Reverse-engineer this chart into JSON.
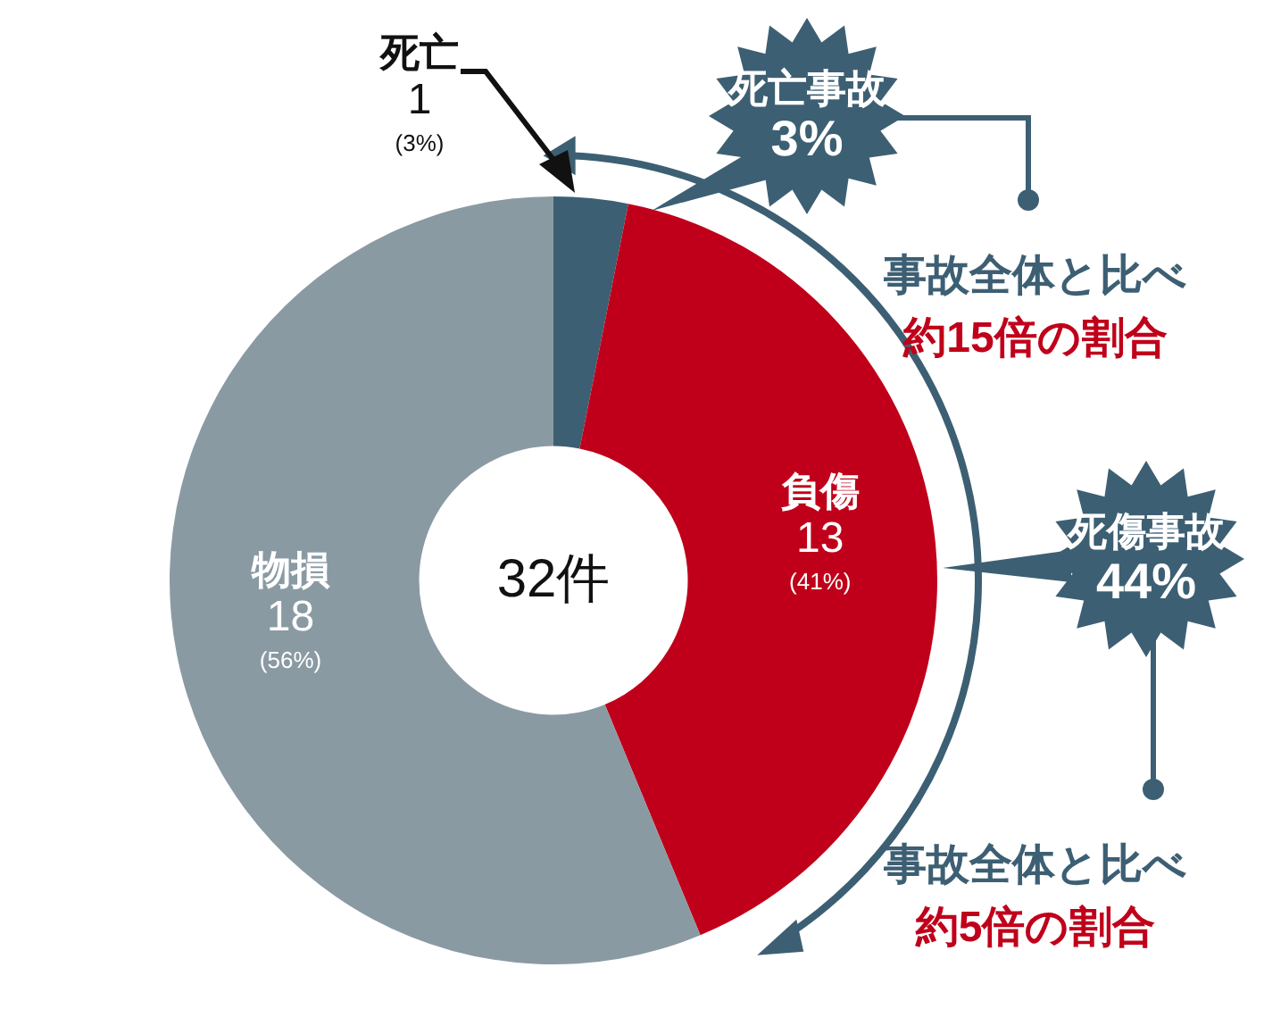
{
  "chart_data": {
    "type": "donut",
    "categories": [
      "死亡",
      "負傷",
      "物損"
    ],
    "values": [
      1,
      13,
      18
    ],
    "colors": [
      "#3d5f73",
      "#c0001a",
      "#8a9aa3"
    ],
    "data_labels": true,
    "annotations": [
      "32件",
      "死亡事故\n3%",
      "事故全体と比べ",
      "約15倍の割合",
      "死傷事故\n44%",
      "事故全体と比べ",
      "約5倍の割合",
      {
        "text": "(3%)",
        "x": "死亡"
      },
      {
        "text": "(41%)",
        "x": "負傷"
      },
      {
        "text": "(56%)",
        "x": "物損"
      }
    ],
    "legend": false
  }
}
